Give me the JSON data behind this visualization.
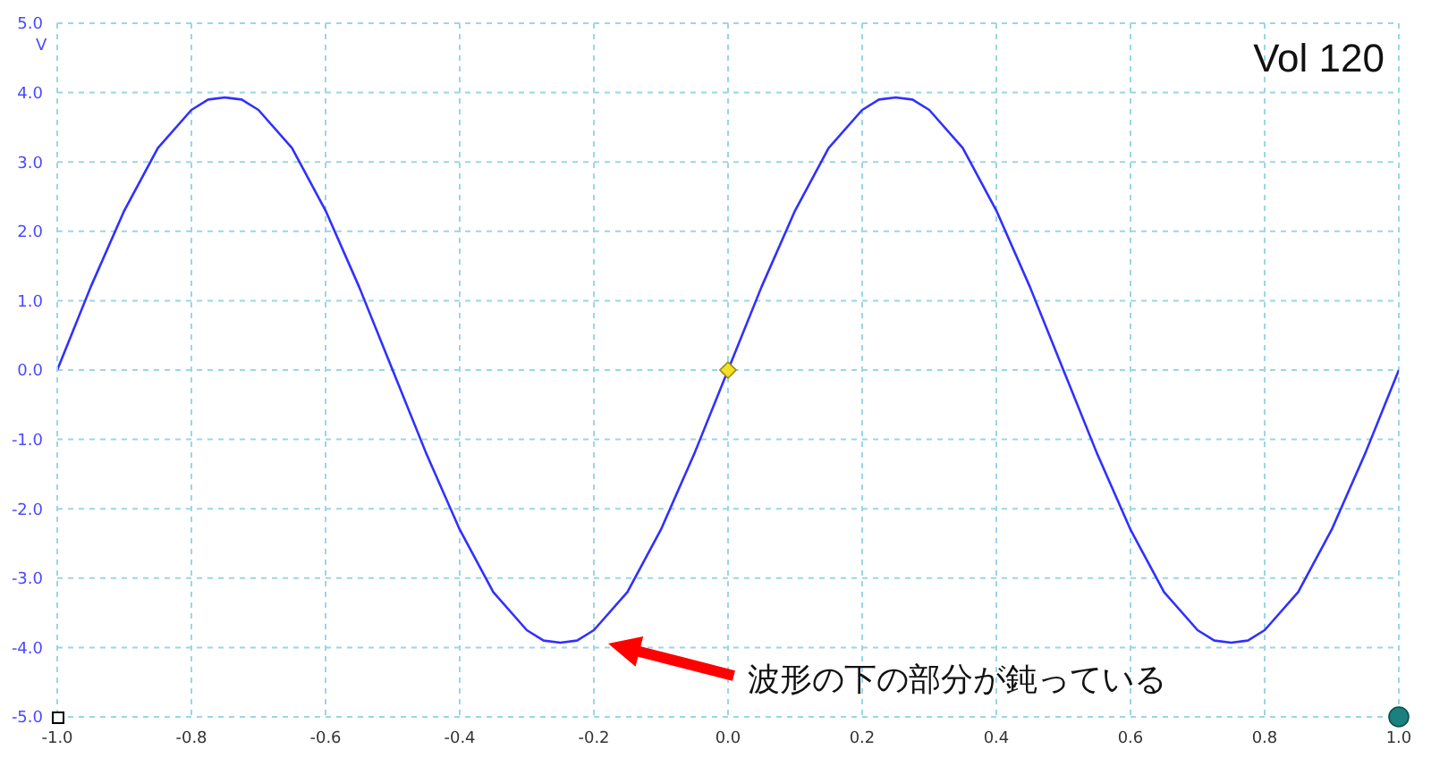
{
  "chart_data": {
    "type": "line",
    "title": "Vol 120",
    "ylabel": "V",
    "annotations": [
      "波形の下の部分が鈍っている"
    ],
    "x": [
      -1,
      -0.95,
      -0.9,
      -0.85,
      -0.8,
      -0.775,
      -0.75,
      -0.725,
      -0.7,
      -0.65,
      -0.6,
      -0.55,
      -0.5,
      -0.45,
      -0.4,
      -0.35,
      -0.3,
      -0.275,
      -0.25,
      -0.225,
      -0.2,
      -0.15,
      -0.1,
      -0.05,
      0,
      0.05,
      0.1,
      0.15,
      0.2,
      0.225,
      0.25,
      0.275,
      0.3,
      0.35,
      0.4,
      0.45,
      0.5,
      0.55,
      0.6,
      0.65,
      0.7,
      0.725,
      0.75,
      0.775,
      0.8,
      0.85,
      0.9,
      0.95,
      1
    ],
    "series": [
      {
        "color": "#3030ff",
        "values": [
          0,
          1.2,
          2.3,
          3.2,
          3.75,
          3.9,
          3.93,
          3.9,
          3.75,
          3.2,
          2.3,
          1.2,
          0,
          -1.2,
          -2.3,
          -3.2,
          -3.75,
          -3.9,
          -3.93,
          -3.9,
          -3.75,
          -3.2,
          -2.3,
          -1.2,
          0,
          1.2,
          2.3,
          3.2,
          3.75,
          3.9,
          3.93,
          3.9,
          3.75,
          3.2,
          2.3,
          1.2,
          0,
          -1.2,
          -2.3,
          -3.2,
          -3.75,
          -3.9,
          -3.93,
          -3.9,
          -3.75,
          -3.2,
          -2.3,
          -1.2,
          0
        ]
      }
    ],
    "xlim": [
      -1,
      1
    ],
    "ylim": [
      -5,
      5
    ],
    "xticks": [
      {
        "value": -1,
        "label": "-1.0"
      },
      -0.8,
      -0.6,
      -0.4,
      -0.2,
      {
        "value": 0,
        "label": "0.0"
      },
      0.2,
      0.4,
      0.6,
      0.8,
      {
        "value": 1,
        "label": "1.0"
      }
    ],
    "yticks": [
      {
        "value": -5,
        "label": "-5.0"
      },
      {
        "value": -4,
        "label": "-4.0"
      },
      {
        "value": -3,
        "label": "-3.0"
      },
      {
        "value": -2,
        "label": "-2.0"
      },
      {
        "value": -1,
        "label": "-1.0"
      },
      {
        "value": 0,
        "label": "0.0"
      },
      {
        "value": 1,
        "label": "1.0"
      },
      {
        "value": 2,
        "label": "2.0"
      },
      {
        "value": 3,
        "label": "3.0"
      },
      {
        "value": 4,
        "label": "4.0"
      },
      {
        "value": 5,
        "label": "5.0"
      }
    ],
    "grid": true,
    "marker": "none",
    "line_style": "solid"
  }
}
